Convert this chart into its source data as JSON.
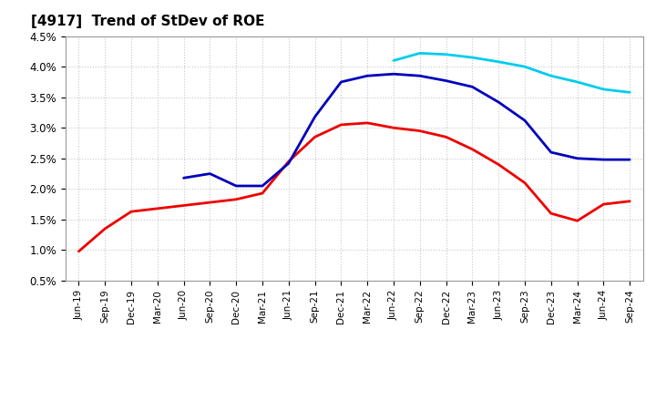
{
  "title": "[4917]  Trend of StDev of ROE",
  "ylim": [
    0.005,
    0.045
  ],
  "yticks": [
    0.005,
    0.01,
    0.015,
    0.02,
    0.025,
    0.03,
    0.035,
    0.04,
    0.045
  ],
  "ytick_labels": [
    "0.5%",
    "1.0%",
    "1.5%",
    "2.0%",
    "2.5%",
    "3.0%",
    "3.5%",
    "4.0%",
    "4.5%"
  ],
  "x_labels": [
    "Jun-19",
    "Sep-19",
    "Dec-19",
    "Mar-20",
    "Jun-20",
    "Sep-20",
    "Dec-20",
    "Mar-21",
    "Jun-21",
    "Sep-21",
    "Dec-21",
    "Mar-22",
    "Jun-22",
    "Sep-22",
    "Dec-22",
    "Mar-23",
    "Jun-23",
    "Sep-23",
    "Dec-23",
    "Mar-24",
    "Jun-24",
    "Sep-24"
  ],
  "series_3y": [
    0.0098,
    0.0135,
    0.0163,
    0.0168,
    0.0173,
    0.0178,
    0.0183,
    0.0193,
    0.0245,
    0.0285,
    0.0305,
    0.0308,
    0.03,
    0.0295,
    0.0285,
    0.0265,
    0.024,
    0.021,
    0.016,
    0.0148,
    0.0175,
    0.018
  ],
  "series_5y": [
    null,
    null,
    null,
    null,
    0.0218,
    0.0225,
    0.0205,
    0.0205,
    0.0242,
    0.0318,
    0.0375,
    0.0385,
    0.0388,
    0.0385,
    0.0377,
    0.0367,
    0.0342,
    0.0312,
    0.026,
    0.025,
    0.0248,
    0.0248
  ],
  "series_7y": [
    null,
    null,
    null,
    null,
    null,
    null,
    null,
    null,
    null,
    null,
    null,
    null,
    0.041,
    0.0422,
    0.042,
    0.0415,
    0.0408,
    0.04,
    0.0385,
    0.0375,
    0.0363,
    0.0358
  ],
  "series_10y": [],
  "color_3y": "#EE0000",
  "color_5y": "#0000BB",
  "color_7y": "#00CCEE",
  "color_10y": "#007700",
  "background_color": "#FFFFFF",
  "grid_color": "#BBBBBB",
  "title_fontsize": 11
}
